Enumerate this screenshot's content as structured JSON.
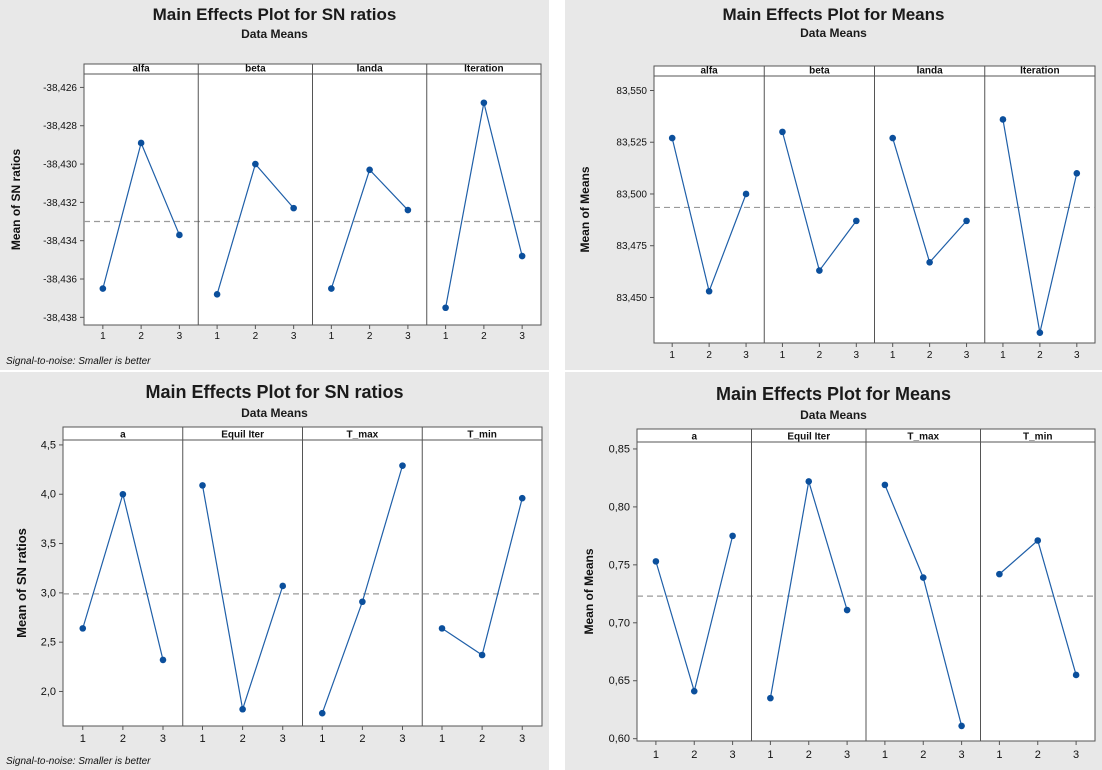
{
  "colors": {
    "background": "#ffffff",
    "frame": "#e8e8e8",
    "line": "#1f5fa8",
    "point": "#0b4f9c",
    "reference": "#9a9a9a",
    "grid_line": "#888888"
  },
  "chart_data": [
    {
      "type": "line",
      "title": "Main Effects Plot for SN ratios",
      "subtitle": "Data Means",
      "ylabel": "Mean of SN ratios",
      "footnote": "Signal-to-noise: Smaller is better",
      "x": [
        "1",
        "2",
        "3"
      ],
      "y_ticks": [
        -38.426,
        -38.428,
        -38.43,
        -38.432,
        -38.434,
        -38.436,
        -38.438
      ],
      "y_tick_labels": [
        "-38,426",
        "-38,428",
        "-38,430",
        "-38,432",
        "-38,434",
        "-38,436",
        "-38,438"
      ],
      "ylim": [
        -38.4384,
        -38.4253
      ],
      "reference_line": -38.433,
      "panels": [
        {
          "label": "alfa",
          "values": [
            -38.4365,
            -38.4289,
            -38.4337
          ]
        },
        {
          "label": "beta",
          "values": [
            -38.4368,
            -38.43,
            -38.4323
          ]
        },
        {
          "label": "landa",
          "values": [
            -38.4365,
            -38.4303,
            -38.4324
          ]
        },
        {
          "label": "Iteration",
          "values": [
            -38.4375,
            -38.4268,
            -38.4348
          ]
        }
      ]
    },
    {
      "type": "line",
      "title": "Main Effects Plot for Means",
      "subtitle": "Data Means",
      "ylabel": "Mean of Means",
      "footnote": "",
      "x": [
        "1",
        "2",
        "3"
      ],
      "y_ticks": [
        83.55,
        83.525,
        83.5,
        83.475,
        83.45
      ],
      "y_tick_labels": [
        "83,550",
        "83,525",
        "83,500",
        "83,475",
        "83,450"
      ],
      "ylim": [
        83.428,
        83.557
      ],
      "reference_line": 83.4935,
      "panels": [
        {
          "label": "alfa",
          "values": [
            83.527,
            83.453,
            83.5
          ]
        },
        {
          "label": "beta",
          "values": [
            83.53,
            83.463,
            83.487
          ]
        },
        {
          "label": "landa",
          "values": [
            83.527,
            83.467,
            83.487
          ]
        },
        {
          "label": "Iteration",
          "values": [
            83.536,
            83.433,
            83.51
          ]
        }
      ]
    },
    {
      "type": "line",
      "title": "Main Effects Plot for SN ratios",
      "subtitle": "Data Means",
      "ylabel": "Mean of SN ratios",
      "footnote": "Signal-to-noise: Smaller is better",
      "x": [
        "1",
        "2",
        "3"
      ],
      "y_ticks": [
        4.5,
        4.0,
        3.5,
        3.0,
        2.5,
        2.0
      ],
      "y_tick_labels": [
        "4,5",
        "4,0",
        "3,5",
        "3,0",
        "2,5",
        "2,0"
      ],
      "ylim": [
        1.65,
        4.55
      ],
      "reference_line": 2.99,
      "panels": [
        {
          "label": "a",
          "values": [
            2.64,
            4.0,
            2.32
          ]
        },
        {
          "label": "Equil Iter",
          "values": [
            4.09,
            1.82,
            3.07
          ]
        },
        {
          "label": "T_max",
          "values": [
            1.78,
            2.91,
            4.29
          ]
        },
        {
          "label": "T_min",
          "values": [
            2.64,
            2.37,
            3.96
          ]
        }
      ]
    },
    {
      "type": "line",
      "title": "Main Effects Plot for Means",
      "subtitle": "Data Means",
      "ylabel": "Mean of Means",
      "footnote": "",
      "x": [
        "1",
        "2",
        "3"
      ],
      "y_ticks": [
        0.85,
        0.8,
        0.75,
        0.7,
        0.65,
        0.6
      ],
      "y_tick_labels": [
        "0,85",
        "0,80",
        "0,75",
        "0,70",
        "0,65",
        "0,60"
      ],
      "ylim": [
        0.598,
        0.856
      ],
      "reference_line": 0.723,
      "panels": [
        {
          "label": "a",
          "values": [
            0.753,
            0.641,
            0.775
          ]
        },
        {
          "label": "Equil Iter",
          "values": [
            0.635,
            0.822,
            0.711
          ]
        },
        {
          "label": "T_max",
          "values": [
            0.819,
            0.739,
            0.611
          ]
        },
        {
          "label": "T_min",
          "values": [
            0.742,
            0.771,
            0.655
          ]
        }
      ]
    }
  ]
}
